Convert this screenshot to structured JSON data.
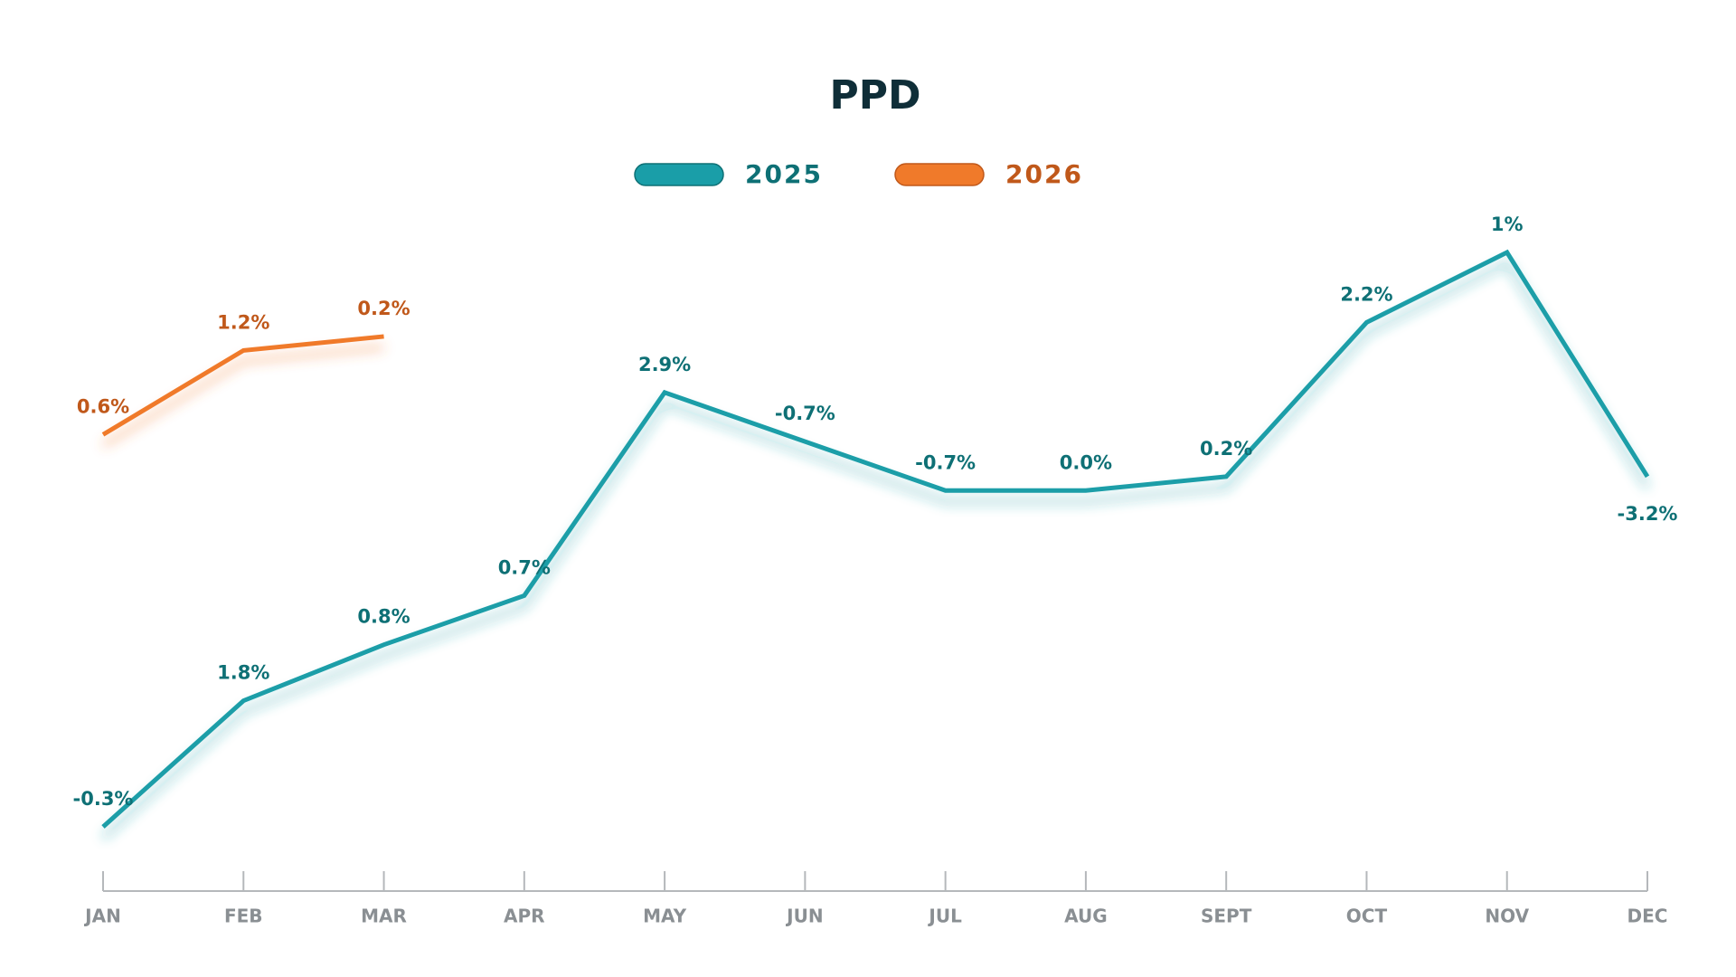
{
  "chart_data": {
    "type": "line",
    "title": "PPD",
    "categories": [
      "JAN",
      "FEB",
      "MAR",
      "APR",
      "MAY",
      "JUN",
      "JUL",
      "AUG",
      "SEPT",
      "OCT",
      "NOV",
      "DEC"
    ],
    "series": [
      {
        "name": "2025",
        "color": "#1a9ea8",
        "label_color": "#0e7075",
        "values": [
          -0.3,
          1.8,
          0.8,
          0.7,
          2.9,
          -0.7,
          -0.7,
          0,
          0.2,
          2.2,
          1,
          -3.2
        ],
        "value_labels": [
          "-0.3%",
          "1.8%",
          "0.8%",
          "0.7%",
          "2.9%",
          "-0.7%",
          "-0.7%",
          "0.0%",
          "0.2%",
          "2.2%",
          "1%",
          "-3.2%"
        ]
      },
      {
        "name": "2026",
        "color": "#f07a2a",
        "label_color": "#c0581a",
        "values": [
          0.6,
          1.2,
          0.2,
          null,
          null,
          null,
          null,
          null,
          null,
          null,
          null,
          null
        ],
        "value_labels": [
          "0.6%",
          "1.2%",
          "0.2%",
          null,
          null,
          null,
          null,
          null,
          null,
          null,
          null,
          null
        ]
      }
    ],
    "cumulative": true,
    "legend": "top"
  }
}
